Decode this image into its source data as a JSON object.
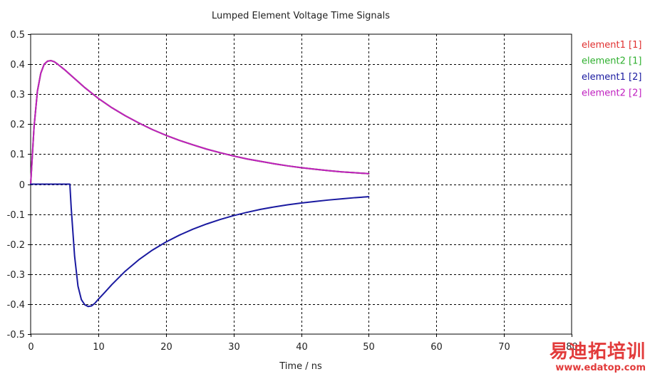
{
  "chart_data": {
    "type": "line",
    "title": "Lumped Element Voltage Time Signals",
    "xlabel": "Time / ns",
    "ylabel": "",
    "xlim": [
      0,
      80
    ],
    "ylim": [
      -0.5,
      0.5
    ],
    "x_ticks": [
      "0",
      "10",
      "20",
      "30",
      "40",
      "50",
      "60",
      "70",
      "80"
    ],
    "y_ticks": [
      "0.5",
      "0.4",
      "0.3",
      "0.2",
      "0.1",
      "0",
      "-0.1",
      "-0.2",
      "-0.3",
      "-0.4",
      "-0.5"
    ],
    "grid": true,
    "legend_position": "top-right, outside plot",
    "series": [
      {
        "name": "element1 [1]",
        "color": "#e03030",
        "x": [
          0,
          0.5,
          1,
          1.5,
          2,
          2.5,
          3,
          3.5,
          4,
          5,
          6,
          7,
          8,
          9,
          10,
          12,
          14,
          16,
          18,
          20,
          22,
          24,
          26,
          28,
          30,
          32,
          34,
          36,
          38,
          40,
          42,
          44,
          46,
          48,
          50
        ],
        "y": [
          0,
          0.19,
          0.31,
          0.37,
          0.4,
          0.41,
          0.412,
          0.408,
          0.4,
          0.382,
          0.362,
          0.342,
          0.322,
          0.304,
          0.286,
          0.255,
          0.228,
          0.204,
          0.182,
          0.163,
          0.146,
          0.131,
          0.117,
          0.105,
          0.094,
          0.084,
          0.076,
          0.068,
          0.061,
          0.055,
          0.05,
          0.045,
          0.041,
          0.038,
          0.035
        ]
      },
      {
        "name": "element2 [1]",
        "color": "#30b030",
        "x": [
          0,
          0.5,
          1,
          1.5,
          2,
          2.5,
          3,
          3.5,
          4,
          5,
          6,
          7,
          8,
          9,
          10,
          12,
          14,
          16,
          18,
          20,
          22,
          24,
          26,
          28,
          30,
          32,
          34,
          36,
          38,
          40,
          42,
          44,
          46,
          48,
          50
        ],
        "y": [
          0,
          0.19,
          0.31,
          0.37,
          0.4,
          0.41,
          0.412,
          0.408,
          0.4,
          0.382,
          0.362,
          0.342,
          0.322,
          0.304,
          0.286,
          0.255,
          0.228,
          0.204,
          0.182,
          0.163,
          0.146,
          0.131,
          0.117,
          0.105,
          0.094,
          0.084,
          0.076,
          0.068,
          0.061,
          0.055,
          0.05,
          0.045,
          0.041,
          0.038,
          0.035
        ]
      },
      {
        "name": "element1 [2]",
        "color": "#1a1aa0",
        "x": [
          0,
          1,
          2,
          3,
          4,
          5,
          5.8,
          6,
          6.5,
          7,
          7.5,
          8,
          8.5,
          9,
          9.5,
          10,
          11,
          12,
          14,
          16,
          18,
          20,
          22,
          24,
          26,
          28,
          30,
          32,
          34,
          36,
          38,
          40,
          42,
          44,
          46,
          48,
          50
        ],
        "y": [
          0,
          0,
          0,
          0,
          0,
          0,
          0,
          -0.08,
          -0.24,
          -0.34,
          -0.385,
          -0.402,
          -0.408,
          -0.406,
          -0.397,
          -0.384,
          -0.36,
          -0.335,
          -0.29,
          -0.252,
          -0.22,
          -0.193,
          -0.17,
          -0.15,
          -0.133,
          -0.118,
          -0.105,
          -0.094,
          -0.084,
          -0.076,
          -0.069,
          -0.063,
          -0.058,
          -0.053,
          -0.049,
          -0.045,
          -0.042
        ]
      },
      {
        "name": "element2 [2]",
        "color": "#c020c0",
        "x": [
          0,
          0.5,
          1,
          1.5,
          2,
          2.5,
          3,
          3.5,
          4,
          5,
          6,
          7,
          8,
          9,
          10,
          12,
          14,
          16,
          18,
          20,
          22,
          24,
          26,
          28,
          30,
          32,
          34,
          36,
          38,
          40,
          42,
          44,
          46,
          48,
          50
        ],
        "y": [
          0,
          0.19,
          0.31,
          0.37,
          0.4,
          0.41,
          0.412,
          0.408,
          0.4,
          0.382,
          0.362,
          0.342,
          0.322,
          0.304,
          0.286,
          0.255,
          0.228,
          0.204,
          0.182,
          0.163,
          0.146,
          0.131,
          0.117,
          0.105,
          0.094,
          0.084,
          0.076,
          0.068,
          0.061,
          0.055,
          0.05,
          0.045,
          0.041,
          0.038,
          0.035
        ]
      }
    ],
    "draw_order": [
      0,
      1,
      3,
      2
    ]
  },
  "watermark": {
    "brand": "易迪拓培训",
    "url": "www.edatop.com",
    "color": "#e23b3b"
  }
}
